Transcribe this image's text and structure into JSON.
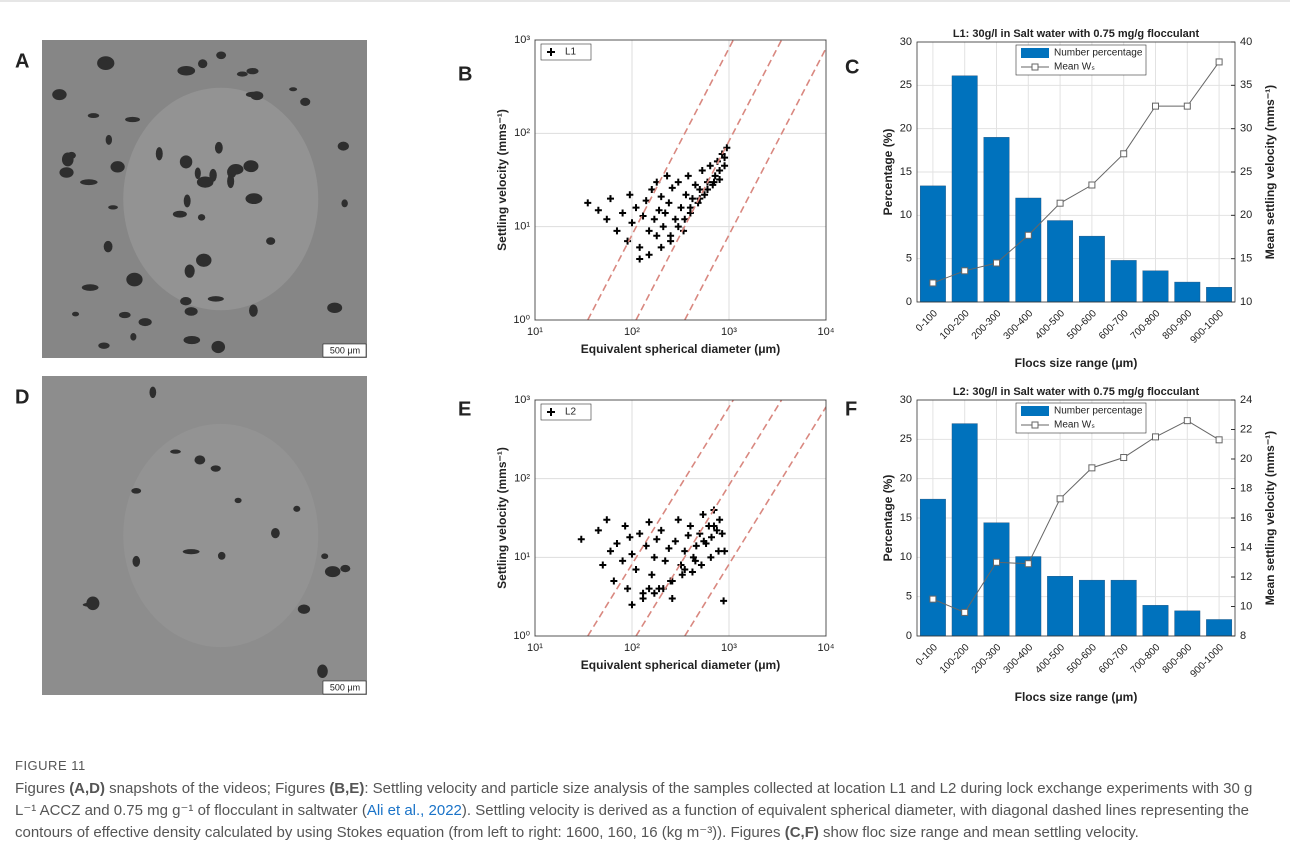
{
  "photos": [
    {
      "panel": "A",
      "scale_bar": "500 μm"
    },
    {
      "panel": "D",
      "scale_bar": "500 μm"
    }
  ],
  "chart_data": [
    {
      "type": "scatter",
      "panel": "B",
      "xlabel": "Equivalent spherical diameter (μm)",
      "ylabel": "Settling velocity (mms⁻¹)",
      "log_x": true,
      "log_y": true,
      "grid": true,
      "legend": "upper-left",
      "xlim": [
        10,
        10000
      ],
      "ylim": [
        1,
        1000
      ],
      "xticks": [
        {
          "value": 10,
          "label": "10¹"
        },
        {
          "value": 100,
          "label": "10²"
        },
        {
          "value": 1000,
          "label": "10³"
        },
        {
          "value": 10000,
          "label": "10⁴"
        }
      ],
      "yticks": [
        {
          "value": 1,
          "label": "10⁰"
        },
        {
          "value": 10,
          "label": "10¹"
        },
        {
          "value": 100,
          "label": "10²"
        },
        {
          "value": 1000,
          "label": "10³"
        }
      ],
      "series": [
        {
          "name": "L1",
          "color": "#000000",
          "x": [
            35,
            45,
            55,
            60,
            70,
            80,
            90,
            95,
            100,
            110,
            120,
            130,
            140,
            150,
            160,
            170,
            180,
            190,
            200,
            210,
            220,
            240,
            250,
            260,
            280,
            300,
            320,
            340,
            360,
            380,
            400,
            420,
            450,
            480,
            500,
            530,
            560,
            600,
            640,
            680,
            720,
            760,
            800,
            850,
            900,
            950,
            120,
            150,
            200,
            250,
            300,
            350,
            400,
            500,
            600,
            700,
            800,
            900,
            180,
            230
          ],
          "values": [
            18,
            15,
            12,
            20,
            9,
            14,
            7,
            22,
            11,
            16,
            6,
            13,
            19,
            9,
            25,
            12,
            8,
            15,
            21,
            10,
            14,
            18,
            7,
            26,
            12,
            30,
            16,
            9,
            22,
            35,
            14,
            20,
            28,
            18,
            25,
            40,
            22,
            30,
            45,
            28,
            35,
            50,
            32,
            60,
            45,
            70,
            4.5,
            5,
            6,
            8,
            10,
            12,
            16,
            20,
            25,
            30,
            40,
            55,
            30,
            35
          ]
        }
      ],
      "reference_lines": {
        "color": "#d98880",
        "lines": [
          {
            "x": [
              35,
              1107
            ],
            "values": [
              1,
              1000
            ]
          },
          {
            "x": [
              110,
              3479
            ],
            "values": [
              1,
              1000
            ]
          },
          {
            "x": [
              350,
              10000
            ],
            "values": [
              1,
              816
            ]
          }
        ]
      }
    },
    {
      "type": "bar",
      "panel": "C",
      "title": "L1: 30g/l in Salt water with 0.75 mg/g flocculant",
      "xlabel": "Flocs size range (μm)",
      "ylabel": "Percentage (%)",
      "y2label": "Mean settling velocity (mms⁻¹)",
      "grid": true,
      "legend": "upper-center",
      "categories": [
        "0-100",
        "100-200",
        "200-300",
        "300-400",
        "400-500",
        "500-600",
        "600-700",
        "700-800",
        "800-900",
        "900-1000"
      ],
      "ylim": [
        0,
        30
      ],
      "yticks": [
        0,
        5,
        10,
        15,
        20,
        25,
        30
      ],
      "y2lim": [
        10,
        40
      ],
      "y2ticks": [
        10,
        15,
        20,
        25,
        30,
        35,
        40
      ],
      "series": [
        {
          "name": "Number percentage",
          "color": "#0072bd",
          "values": [
            13.4,
            26.1,
            19.0,
            12.0,
            9.4,
            7.6,
            4.8,
            3.6,
            2.3,
            1.7
          ]
        },
        {
          "name": "Mean Wₛ",
          "color": "#666666",
          "axis": "y2",
          "marker": "square",
          "values": [
            12.2,
            13.6,
            14.5,
            17.7,
            21.4,
            23.5,
            27.1,
            32.6,
            32.6,
            37.7
          ]
        }
      ]
    },
    {
      "type": "scatter",
      "panel": "E",
      "xlabel": "Equivalent spherical diameter (μm)",
      "ylabel": "Settling velocity (mms⁻¹)",
      "log_x": true,
      "log_y": true,
      "grid": true,
      "legend": "upper-left",
      "xlim": [
        10,
        10000
      ],
      "ylim": [
        1,
        1000
      ],
      "xticks": [
        {
          "value": 10,
          "label": "10¹"
        },
        {
          "value": 100,
          "label": "10²"
        },
        {
          "value": 1000,
          "label": "10³"
        },
        {
          "value": 10000,
          "label": "10⁴"
        }
      ],
      "yticks": [
        {
          "value": 1,
          "label": "10⁰"
        },
        {
          "value": 10,
          "label": "10¹"
        },
        {
          "value": 100,
          "label": "10²"
        },
        {
          "value": 1000,
          "label": "10³"
        }
      ],
      "series": [
        {
          "name": "L2",
          "color": "#000000",
          "x": [
            30,
            45,
            50,
            55,
            60,
            65,
            70,
            80,
            85,
            90,
            95,
            100,
            110,
            120,
            130,
            140,
            150,
            160,
            170,
            180,
            190,
            200,
            220,
            240,
            260,
            280,
            300,
            320,
            350,
            380,
            400,
            430,
            460,
            500,
            540,
            580,
            620,
            660,
            700,
            750,
            800,
            850,
            900,
            100,
            130,
            170,
            210,
            260,
            330,
            420,
            520,
            650,
            780,
            880,
            150,
            250,
            350,
            450,
            550,
            700
          ],
          "values": [
            17,
            22,
            8,
            30,
            12,
            5,
            15,
            9,
            25,
            4,
            18,
            11,
            7,
            20,
            3.5,
            14,
            28,
            6,
            10,
            17,
            4,
            22,
            9,
            13,
            3,
            16,
            30,
            8,
            12,
            19,
            25,
            10,
            14,
            20,
            35,
            15,
            25,
            18,
            40,
            22,
            30,
            20,
            12,
            2.5,
            3,
            3.5,
            4,
            5,
            6,
            6.5,
            8,
            10,
            12,
            2.8,
            4,
            5,
            7,
            9,
            16,
            25
          ]
        }
      ],
      "reference_lines": {
        "color": "#d98880",
        "lines": [
          {
            "x": [
              35,
              1107
            ],
            "values": [
              1,
              1000
            ]
          },
          {
            "x": [
              110,
              3479
            ],
            "values": [
              1,
              1000
            ]
          },
          {
            "x": [
              350,
              10000
            ],
            "values": [
              1,
              816
            ]
          }
        ]
      }
    },
    {
      "type": "bar",
      "panel": "F",
      "title": "L2: 30g/l in Salt water with 0.75 mg/g flocculant",
      "xlabel": "Flocs size range (μm)",
      "ylabel": "Percentage (%)",
      "y2label": "Mean settling velocity (mms⁻¹)",
      "grid": true,
      "legend": "upper-center",
      "categories": [
        "0-100",
        "100-200",
        "200-300",
        "300-400",
        "400-500",
        "500-600",
        "600-700",
        "700-800",
        "800-900",
        "900-1000"
      ],
      "ylim": [
        0,
        30
      ],
      "yticks": [
        0,
        5,
        10,
        15,
        20,
        25,
        30
      ],
      "y2lim": [
        8,
        24
      ],
      "y2ticks": [
        8,
        10,
        12,
        14,
        16,
        18,
        20,
        22,
        24
      ],
      "series": [
        {
          "name": "Number percentage",
          "color": "#0072bd",
          "values": [
            17.4,
            27.0,
            14.4,
            10.1,
            7.6,
            7.1,
            7.1,
            3.9,
            3.2,
            2.1
          ]
        },
        {
          "name": "Mean Wₛ",
          "color": "#666666",
          "axis": "y2",
          "marker": "square",
          "values": [
            10.5,
            9.6,
            13.0,
            12.9,
            17.3,
            19.4,
            20.1,
            21.5,
            22.6,
            21.3
          ]
        }
      ]
    }
  ],
  "caption": {
    "label": "FIGURE 11",
    "parts": [
      "Figures ",
      "(A,D)",
      " snapshots of the videos; Figures ",
      "(B,E)",
      ": Settling velocity and particle size analysis of the samples collected at location L1 and L2 during lock exchange experiments with 30 g L⁻¹ ACCZ and 0.75 mg g⁻¹ of flocculant in saltwater (",
      "Ali et al., 2022",
      "). Settling velocity is derived as a function of equivalent spherical diameter, with diagonal dashed lines representing the contours of effective density calculated by using Stokes equation (from left to right: 1600, 160, 16 (kg m⁻³)). Figures ",
      "(C,F)",
      " show floc size range and mean settling velocity."
    ]
  }
}
